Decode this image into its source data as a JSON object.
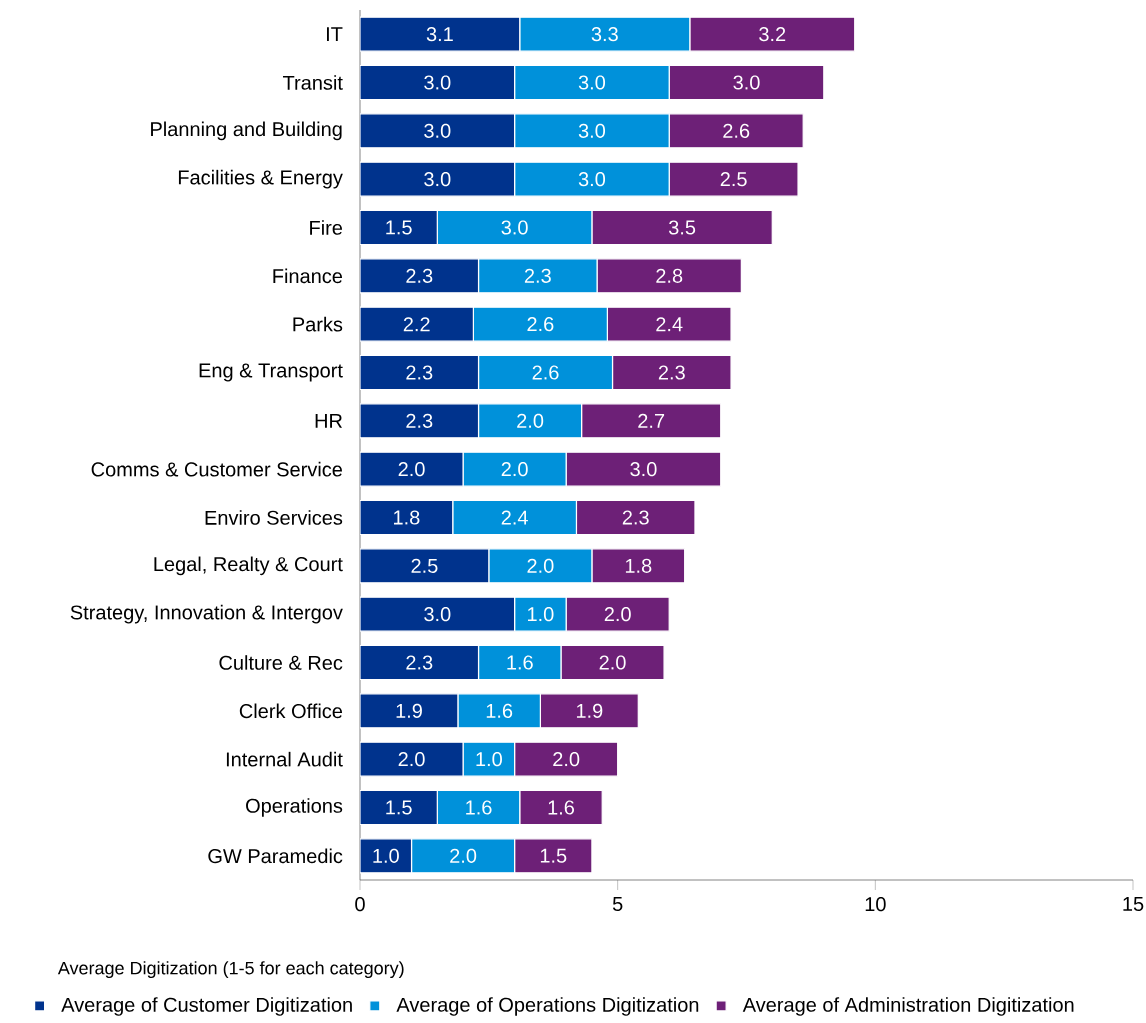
{
  "chart_data": {
    "type": "bar",
    "orientation": "horizontal",
    "stacked": true,
    "xlabel": "Average Digitization (1-5 for each category)",
    "categories": [
      "IT",
      "Transit",
      "Planning and Building",
      "Facilities & Energy",
      "Fire",
      "Finance",
      "Parks",
      "Eng & Transport",
      "HR",
      "Comms & Customer Service",
      "Enviro Services",
      "Legal, Realty & Court",
      "Strategy, Innovation & Intergov",
      "Culture & Rec",
      "Clerk Office",
      "Internal Audit",
      "Operations",
      "GW Paramedic"
    ],
    "series": [
      {
        "name": "Average of Customer Digitization",
        "color": "#00338d",
        "values": [
          3.1,
          3.0,
          3.0,
          3.0,
          1.5,
          2.3,
          2.2,
          2.3,
          2.3,
          2.0,
          1.8,
          2.5,
          3.0,
          2.3,
          1.9,
          2.0,
          1.5,
          1.0
        ],
        "value_labels": [
          "3.1",
          "3.0",
          "3.0",
          "3.0",
          "1.5",
          "2.3",
          "2.2",
          "2.3",
          "2.3",
          "2.0",
          "1.8",
          "2.5",
          "3.0",
          "2.3",
          "1.9",
          "2.0",
          "1.5",
          "1.0"
        ]
      },
      {
        "name": "Average of Operations Digitization",
        "color": "#0091da",
        "values": [
          3.3,
          3.0,
          3.0,
          3.0,
          3.0,
          2.3,
          2.6,
          2.6,
          2.0,
          2.0,
          2.4,
          2.0,
          1.0,
          1.6,
          1.6,
          1.0,
          1.6,
          2.0
        ],
        "value_labels": [
          "3.3",
          "3.0",
          "3.0",
          "3.0",
          "3.0",
          "2.3",
          "2.6",
          "2.6",
          "2.0",
          "2.0",
          "2.4",
          "2.0",
          "1.0",
          "1.6",
          "1.6",
          "1.0",
          "1.6",
          "2.0"
        ]
      },
      {
        "name": "Average of Administration Digitization",
        "color": "#6d2077",
        "values": [
          3.2,
          3.0,
          2.6,
          2.5,
          3.5,
          2.8,
          2.4,
          2.3,
          2.7,
          3.0,
          2.3,
          1.8,
          2.0,
          2.0,
          1.9,
          2.0,
          1.6,
          1.5
        ],
        "value_labels": [
          "3.2",
          "3.0",
          "2.6",
          "2.5",
          "3.5",
          "2.8",
          "2.4",
          "2.3",
          "2.7",
          "3.0",
          "2.3",
          "1.8",
          "2.0",
          "2.0",
          "1.9",
          "2.0",
          "1.6",
          "1.5"
        ]
      }
    ],
    "xlim": [
      0,
      15
    ],
    "xticks": [
      0,
      5,
      10,
      15
    ],
    "grid": false,
    "legend": "bottom"
  }
}
